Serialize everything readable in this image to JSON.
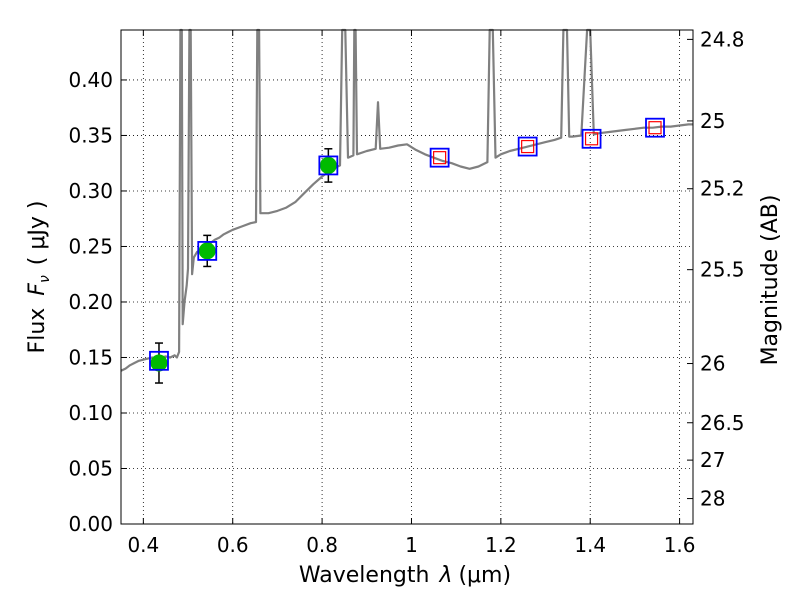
{
  "chart_data": {
    "type": "scatter",
    "title": "",
    "xlabel_prefix": "Wavelength",
    "xlabel_symbol": "λ",
    "xlabel_unit": "(μm)",
    "ylabel_prefix": "Flux",
    "ylabel_symbol": "F",
    "ylabel_subscript": "ν",
    "ylabel_unit": "( μJy )",
    "y2label": "Magnitude (AB)",
    "xlim": [
      0.35,
      1.63
    ],
    "ylim": [
      0.0,
      0.445
    ],
    "grid": true,
    "grid_style": "dotted",
    "x_ticks": [
      0.4,
      0.6,
      0.8,
      1.0,
      1.2,
      1.4,
      1.6
    ],
    "x_tick_labels": [
      "0.4",
      "0.6",
      "0.8",
      "1",
      "1.2",
      "1.4",
      "1.6"
    ],
    "y_ticks": [
      0.0,
      0.05,
      0.1,
      0.15,
      0.2,
      0.25,
      0.3,
      0.35,
      0.4
    ],
    "y_tick_labels": [
      "0.00",
      "0.05",
      "0.10",
      "0.15",
      "0.20",
      "0.25",
      "0.30",
      "0.35",
      "0.40"
    ],
    "y2_ticks": [
      24.8,
      25,
      25.2,
      25.5,
      26,
      26.5,
      27,
      28
    ],
    "y2_tick_labels": [
      "24.8",
      "25",
      "25.2",
      "25.5",
      "26",
      "26.5",
      "27",
      "28"
    ],
    "colors": {
      "spectrum": "#808080",
      "observed": "#00bb00",
      "observed_errorbar": "#000000",
      "model_box": "#0000ff",
      "predicted_box": "#ff0000"
    },
    "series": [
      {
        "role": "model spectrum",
        "style": "line",
        "points": [
          [
            0.35,
            0.138
          ],
          [
            0.36,
            0.14
          ],
          [
            0.37,
            0.143
          ],
          [
            0.38,
            0.145
          ],
          [
            0.39,
            0.147
          ],
          [
            0.4,
            0.148
          ],
          [
            0.41,
            0.149
          ],
          [
            0.42,
            0.15
          ],
          [
            0.43,
            0.149
          ],
          [
            0.44,
            0.15
          ],
          [
            0.45,
            0.151
          ],
          [
            0.46,
            0.15
          ],
          [
            0.47,
            0.152
          ],
          [
            0.475,
            0.15
          ],
          [
            0.48,
            0.155
          ],
          [
            0.483,
            0.445
          ],
          [
            0.486,
            0.445
          ],
          [
            0.488,
            0.18
          ],
          [
            0.492,
            0.2
          ],
          [
            0.497,
            0.215
          ],
          [
            0.5,
            0.23
          ],
          [
            0.503,
            0.445
          ],
          [
            0.506,
            0.445
          ],
          [
            0.509,
            0.225
          ],
          [
            0.513,
            0.24
          ],
          [
            0.52,
            0.245
          ],
          [
            0.53,
            0.248
          ],
          [
            0.54,
            0.25
          ],
          [
            0.55,
            0.253
          ],
          [
            0.56,
            0.256
          ],
          [
            0.57,
            0.258
          ],
          [
            0.58,
            0.261
          ],
          [
            0.59,
            0.263
          ],
          [
            0.6,
            0.265
          ],
          [
            0.62,
            0.268
          ],
          [
            0.64,
            0.271
          ],
          [
            0.652,
            0.272
          ],
          [
            0.655,
            0.445
          ],
          [
            0.659,
            0.445
          ],
          [
            0.662,
            0.28
          ],
          [
            0.68,
            0.28
          ],
          [
            0.7,
            0.282
          ],
          [
            0.72,
            0.285
          ],
          [
            0.74,
            0.29
          ],
          [
            0.76,
            0.298
          ],
          [
            0.78,
            0.306
          ],
          [
            0.8,
            0.313
          ],
          [
            0.82,
            0.319
          ],
          [
            0.84,
            0.323
          ],
          [
            0.845,
            0.445
          ],
          [
            0.852,
            0.445
          ],
          [
            0.858,
            0.33
          ],
          [
            0.87,
            0.332
          ],
          [
            0.872,
            0.445
          ],
          [
            0.875,
            0.445
          ],
          [
            0.878,
            0.333
          ],
          [
            0.9,
            0.336
          ],
          [
            0.92,
            0.338
          ],
          [
            0.925,
            0.38
          ],
          [
            0.93,
            0.338
          ],
          [
            0.95,
            0.339
          ],
          [
            0.97,
            0.341
          ],
          [
            0.99,
            0.342
          ],
          [
            1.01,
            0.337
          ],
          [
            1.03,
            0.333
          ],
          [
            1.05,
            0.33
          ],
          [
            1.07,
            0.327
          ],
          [
            1.09,
            0.325
          ],
          [
            1.11,
            0.322
          ],
          [
            1.13,
            0.32
          ],
          [
            1.15,
            0.322
          ],
          [
            1.17,
            0.326
          ],
          [
            1.175,
            0.445
          ],
          [
            1.182,
            0.445
          ],
          [
            1.188,
            0.33
          ],
          [
            1.2,
            0.333
          ],
          [
            1.22,
            0.336
          ],
          [
            1.24,
            0.338
          ],
          [
            1.26,
            0.34
          ],
          [
            1.28,
            0.342
          ],
          [
            1.3,
            0.344
          ],
          [
            1.32,
            0.346
          ],
          [
            1.335,
            0.348
          ],
          [
            1.34,
            0.445
          ],
          [
            1.348,
            0.445
          ],
          [
            1.353,
            0.349
          ],
          [
            1.36,
            0.349
          ],
          [
            1.38,
            0.35
          ],
          [
            1.393,
            0.445
          ],
          [
            1.4,
            0.445
          ],
          [
            1.408,
            0.351
          ],
          [
            1.42,
            0.352
          ],
          [
            1.44,
            0.353
          ],
          [
            1.46,
            0.354
          ],
          [
            1.48,
            0.355
          ],
          [
            1.5,
            0.356
          ],
          [
            1.52,
            0.357
          ],
          [
            1.54,
            0.357
          ],
          [
            1.56,
            0.358
          ],
          [
            1.58,
            0.358
          ],
          [
            1.6,
            0.359
          ],
          [
            1.62,
            0.36
          ],
          [
            1.63,
            0.36
          ]
        ]
      },
      {
        "role": "observed photometry",
        "style": "filled circle with errorbar",
        "x": [
          0.435,
          0.543,
          0.814
        ],
        "y": [
          0.145,
          0.246,
          0.323
        ],
        "yerr": [
          0.018,
          0.014,
          0.015
        ]
      },
      {
        "role": "model photometry",
        "style": "open square",
        "x": [
          0.435,
          0.543,
          0.814,
          1.063,
          1.26,
          1.403,
          1.545
        ],
        "y": [
          0.147,
          0.246,
          0.323,
          0.33,
          0.34,
          0.347,
          0.357
        ]
      },
      {
        "role": "predicted photometry",
        "style": "small open square",
        "x": [
          1.063,
          1.26,
          1.403,
          1.545
        ],
        "y": [
          0.33,
          0.34,
          0.347,
          0.357
        ]
      }
    ]
  }
}
